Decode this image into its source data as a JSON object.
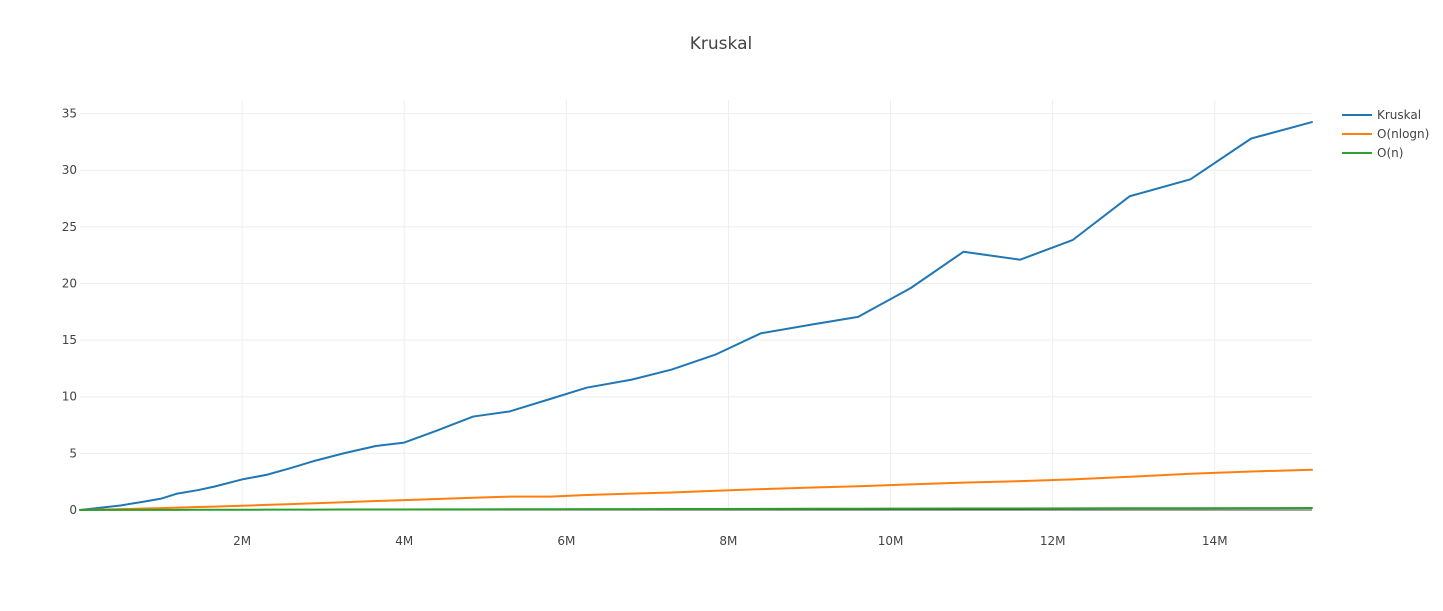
{
  "chart_data": {
    "type": "line",
    "title": "Kruskal",
    "xlabel": "",
    "ylabel": "",
    "xlim": [
      0,
      15200000
    ],
    "ylim": [
      0,
      36.2
    ],
    "x_ticks": [
      2000000,
      4000000,
      6000000,
      8000000,
      10000000,
      12000000,
      14000000
    ],
    "x_tick_labels": [
      "2M",
      "4M",
      "6M",
      "8M",
      "10M",
      "12M",
      "14M"
    ],
    "y_ticks": [
      0,
      5,
      10,
      15,
      20,
      25,
      30,
      35
    ],
    "y_tick_labels": [
      "0",
      "5",
      "10",
      "15",
      "20",
      "25",
      "30",
      "35"
    ],
    "grid": true,
    "legend": "top-right",
    "x": [
      0,
      500000,
      800000,
      1000000,
      1200000,
      1450000,
      1650000,
      2000000,
      2300000,
      2600000,
      2900000,
      3250000,
      3650000,
      4000000,
      4400000,
      4850000,
      5300000,
      5800000,
      6250000,
      6800000,
      7300000,
      7850000,
      8400000,
      9050000,
      9600000,
      10250000,
      10900000,
      11600000,
      12250000,
      12950000,
      13700000,
      14450000,
      15200000
    ],
    "series": [
      {
        "name": "Kruskal",
        "color": "#1f77b4",
        "values": [
          0,
          0.4,
          0.75,
          1.0,
          1.45,
          1.75,
          2.05,
          2.7,
          3.1,
          3.7,
          4.35,
          5.0,
          5.65,
          5.95,
          7.0,
          8.25,
          8.7,
          9.8,
          10.8,
          11.5,
          12.4,
          13.75,
          15.6,
          16.4,
          17.05,
          19.6,
          22.8,
          22.1,
          23.85,
          27.7,
          29.2,
          32.8,
          34.25
        ]
      },
      {
        "name": "O(nlogn)",
        "color": "#ff7f0e",
        "values": [
          0,
          0.08,
          0.13,
          0.17,
          0.21,
          0.26,
          0.3,
          0.37,
          0.45,
          0.52,
          0.6,
          0.69,
          0.79,
          0.87,
          0.97,
          1.08,
          1.18,
          1.18,
          1.32,
          1.45,
          1.55,
          1.7,
          1.84,
          1.99,
          2.1,
          2.26,
          2.42,
          2.55,
          2.7,
          2.93,
          3.2,
          3.4,
          3.55
        ]
      },
      {
        "name": "O(n)",
        "color": "#2ca02c",
        "values": [
          0,
          0.006,
          0.01,
          0.012,
          0.014,
          0.017,
          0.02,
          0.024,
          0.028,
          0.031,
          0.035,
          0.039,
          0.044,
          0.048,
          0.053,
          0.058,
          0.064,
          0.07,
          0.075,
          0.082,
          0.088,
          0.094,
          0.1,
          0.108,
          0.114,
          0.121,
          0.128,
          0.136,
          0.143,
          0.151,
          0.16,
          0.168,
          0.176
        ]
      }
    ]
  }
}
